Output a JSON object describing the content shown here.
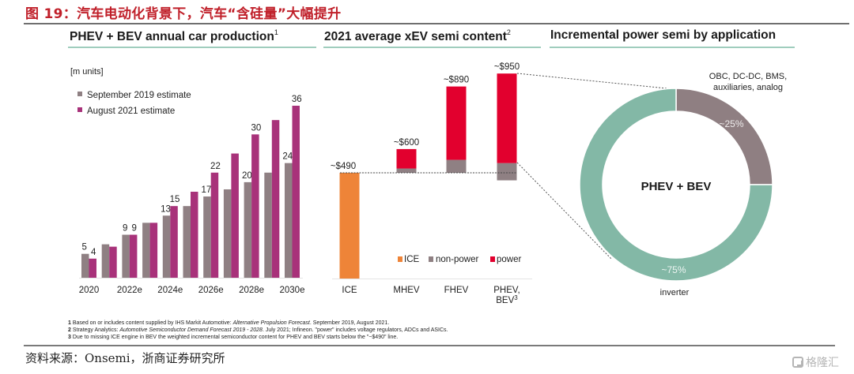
{
  "figure": {
    "title": "图 19：汽车电动化背景下，汽车“含硅量”大幅提升",
    "source": "资料来源：Onsemi，浙商证券研究所",
    "watermark": "格隆汇"
  },
  "panels": [
    {
      "title": "PHEV + BEV annual car production",
      "footnote_ref": "1"
    },
    {
      "title": "2021 average xEV semi content",
      "footnote_ref": "2"
    },
    {
      "title": "Incremental power semi by application",
      "footnote_ref": ""
    }
  ],
  "footnotes": [
    {
      "num": "1",
      "pre": "Based on or includes content supplied by IHS Markit Automotive: ",
      "italic": "Alternative Propulsion Forecast",
      "post": ". September 2019, August 2021."
    },
    {
      "num": "2",
      "pre": "Strategy Analytics: ",
      "italic": "Automotive Semiconductor Demand Forecast 2019 - 2028",
      "post": ". July 2021; Infineon. \"power\" includes voltage regulators, ADCs and ASICs."
    },
    {
      "num": "3",
      "pre": "Due to missing ICE engine in BEV the weighted incremental semiconductor content for PHEV and BEV starts below the \"~$490\" line.",
      "italic": "",
      "post": ""
    }
  ],
  "colors": {
    "sep2019": "#8f8083",
    "aug2021": "#a8327a",
    "ice": "#ee8438",
    "nonpower": "#8f8083",
    "power": "#e2002e",
    "inverter": "#83b8a6",
    "other": "#8f7f82",
    "rule": "#9fcdbd"
  },
  "chart_data": [
    {
      "type": "bar",
      "title": "PHEV + BEV annual car production",
      "unit_label": "[m units]",
      "categories": [
        "2020",
        "2021e",
        "2022e",
        "2023e",
        "2024e",
        "2025e",
        "2026e",
        "2027e",
        "2028e",
        "2029e",
        "2030e"
      ],
      "tick_labels": [
        "2020",
        "",
        "2022e",
        "",
        "2024e",
        "",
        "2026e",
        "",
        "2028e",
        "",
        "2030e"
      ],
      "series": [
        {
          "name": "September 2019 estimate",
          "values": [
            5,
            7,
            9,
            11.5,
            13,
            15,
            17,
            18.5,
            20,
            22,
            24
          ],
          "labels": [
            "5",
            "",
            "9",
            "",
            "13",
            "",
            "17",
            "",
            "20",
            "",
            "24"
          ]
        },
        {
          "name": "August 2021 estimate",
          "values": [
            4,
            6.5,
            9,
            11.5,
            15,
            18,
            22,
            26,
            30,
            33,
            36
          ],
          "labels": [
            "4",
            "",
            "9",
            "",
            "15",
            "",
            "22",
            "",
            "30",
            "",
            "36"
          ]
        }
      ],
      "legend_position": "top-left",
      "ylim": [
        0,
        36
      ],
      "grid": false
    },
    {
      "type": "bar",
      "stacked": true,
      "title": "2021 average xEV semi content",
      "categories": [
        "ICE",
        "MHEV",
        "FHEV",
        "PHEV, BEV"
      ],
      "category_superscripts": [
        "",
        "",
        "",
        "3"
      ],
      "baseline_label": "~$490",
      "baseline_value": 490,
      "series": [
        {
          "name": "ICE",
          "segments": [
            [
              0,
              490
            ],
            null,
            null,
            null
          ]
        },
        {
          "name": "non-power",
          "segments": [
            null,
            [
              490,
              510
            ],
            [
              490,
              550
            ],
            [
              455,
              535
            ]
          ]
        },
        {
          "name": "power",
          "segments": [
            null,
            [
              510,
              600
            ],
            [
              550,
              890
            ],
            [
              535,
              950
            ]
          ]
        }
      ],
      "totals": [
        "~$490",
        "~$600",
        "~$890",
        "~$950"
      ],
      "legend": [
        "ICE",
        "non-power",
        "power"
      ],
      "legend_position": "bottom-right",
      "grid": false
    },
    {
      "type": "pie",
      "donut": true,
      "title": "Incremental power semi by application",
      "center_label": "PHEV + BEV",
      "slices": [
        {
          "label": "OBC, DC-DC, BMS, auxiliaries, analog",
          "value": 25,
          "value_label": "~25%"
        },
        {
          "label": "inverter",
          "value": 75,
          "value_label": "~75%"
        }
      ]
    }
  ]
}
